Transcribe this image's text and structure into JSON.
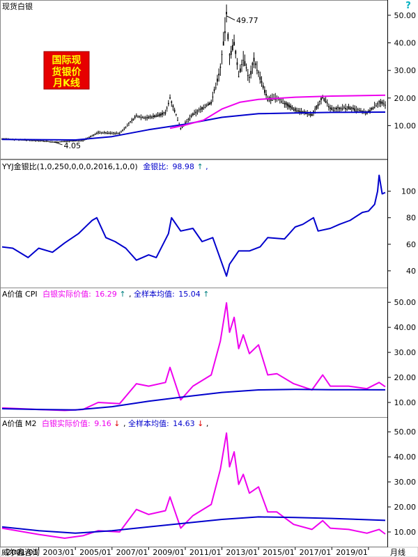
{
  "colors": {
    "black": "#000000",
    "blue": "#0000cc",
    "magenta": "#ee00ee",
    "red": "#dd0000",
    "badge_bg": "#e60000",
    "badge_text": "#ffff00",
    "teal": "#008080"
  },
  "badge": {
    "line1": "国际现",
    "line2": "货银价",
    "line3": "月K线"
  },
  "help_icon": "?",
  "axis_footer": {
    "left": "威尔鑫咨询",
    "right": "月线"
  },
  "chart_data": [
    {
      "type": "candlestick",
      "title": "现货白银",
      "x": [
        "2001/01",
        "2003/01",
        "2005/01",
        "2007/01",
        "2009/01",
        "2011/01",
        "2013/01",
        "2015/01",
        "2017/01",
        "2019/01"
      ],
      "xlim": [
        "1999/01",
        "2019/12"
      ],
      "ylim": [
        0,
        52
      ],
      "yticks": [
        "10.00",
        "20.00",
        "30.00",
        "40.00",
        "50.00"
      ],
      "annotations": {
        "high": "49.77",
        "low": "4.05"
      },
      "series": [
        {
          "color": "#000000",
          "points": [
            [
              "1999/01",
              5.2
            ],
            [
              "2001/06",
              4.4
            ],
            [
              "2001/11",
              4.05
            ],
            [
              "2003/06",
              4.6
            ],
            [
              "2004/04",
              7.5
            ],
            [
              "2005/06",
              7.2
            ],
            [
              "2006/05",
              13.5
            ],
            [
              "2006/12",
              12.8
            ],
            [
              "2007/12",
              14.5
            ],
            [
              "2008/03",
              20.2
            ],
            [
              "2008/10",
              9.0
            ],
            [
              "2009/06",
              14.0
            ],
            [
              "2010/06",
              18.5
            ],
            [
              "2010/12",
              30.5
            ],
            [
              "2011/04",
              49.77
            ],
            [
              "2011/06",
              35.0
            ],
            [
              "2011/09",
              40.0
            ],
            [
              "2011/12",
              28.5
            ],
            [
              "2012/03",
              34.5
            ],
            [
              "2012/07",
              27.0
            ],
            [
              "2012/10",
              34.0
            ],
            [
              "2013/04",
              24.0
            ],
            [
              "2013/07",
              19.5
            ],
            [
              "2014/01",
              20.0
            ],
            [
              "2014/12",
              16.0
            ],
            [
              "2015/12",
              13.8
            ],
            [
              "2016/07",
              20.5
            ],
            [
              "2016/12",
              16.0
            ],
            [
              "2017/12",
              16.5
            ],
            [
              "2018/12",
              14.5
            ],
            [
              "2019/08",
              18.5
            ],
            [
              "2019/12",
              17.5
            ]
          ]
        },
        {
          "color": "#0000cc",
          "points": [
            [
              "1999/01",
              5.0
            ],
            [
              "2003/01",
              4.8
            ],
            [
              "2005/01",
              6.0
            ],
            [
              "2007/01",
              8.5
            ],
            [
              "2009/01",
              10.5
            ],
            [
              "2011/01",
              13.0
            ],
            [
              "2013/01",
              14.3
            ],
            [
              "2015/01",
              14.6
            ],
            [
              "2017/01",
              14.8
            ],
            [
              "2019/12",
              14.9
            ]
          ]
        },
        {
          "color": "#ee00ee",
          "points": [
            [
              "2008/03",
              9.0
            ],
            [
              "2009/01",
              10.2
            ],
            [
              "2010/01",
              12.0
            ],
            [
              "2011/01",
              16.0
            ],
            [
              "2012/01",
              18.5
            ],
            [
              "2013/01",
              19.5
            ],
            [
              "2015/01",
              20.3
            ],
            [
              "2017/01",
              20.7
            ],
            [
              "2019/12",
              21.0
            ]
          ]
        }
      ]
    },
    {
      "type": "line",
      "title": "YYJ金银比(1,0,250,0,0,0,2016,1,0,0)",
      "legend_label": "金银比:",
      "legend_value": "98.98",
      "legend_arrow": "↑",
      "legend_tail": ",",
      "ylim": [
        30,
        115
      ],
      "yticks": [
        "40",
        "60",
        "80",
        "100"
      ],
      "series": [
        {
          "color": "#0000cc",
          "points": [
            [
              "1999/01",
              58
            ],
            [
              "1999/08",
              57
            ],
            [
              "2000/06",
              50
            ],
            [
              "2001/01",
              57
            ],
            [
              "2001/10",
              54
            ],
            [
              "2002/06",
              61
            ],
            [
              "2003/03",
              68
            ],
            [
              "2003/12",
              78
            ],
            [
              "2004/03",
              80
            ],
            [
              "2004/09",
              65
            ],
            [
              "2005/03",
              62
            ],
            [
              "2005/10",
              57
            ],
            [
              "2006/05",
              48
            ],
            [
              "2007/01",
              52
            ],
            [
              "2007/06",
              50
            ],
            [
              "2008/02",
              68
            ],
            [
              "2008/04",
              80
            ],
            [
              "2008/10",
              70
            ],
            [
              "2009/06",
              72
            ],
            [
              "2009/12",
              62
            ],
            [
              "2010/07",
              65
            ],
            [
              "2011/04",
              36
            ],
            [
              "2011/06",
              45
            ],
            [
              "2011/12",
              55
            ],
            [
              "2012/07",
              55
            ],
            [
              "2013/02",
              58
            ],
            [
              "2013/07",
              65
            ],
            [
              "2014/06",
              64
            ],
            [
              "2015/01",
              73
            ],
            [
              "2015/06",
              75
            ],
            [
              "2016/01",
              80
            ],
            [
              "2016/04",
              70
            ],
            [
              "2016/12",
              72
            ],
            [
              "2017/06",
              75
            ],
            [
              "2018/01",
              78
            ],
            [
              "2018/09",
              84
            ],
            [
              "2019/01",
              85
            ],
            [
              "2019/05",
              90
            ],
            [
              "2019/07",
              100
            ],
            [
              "2019/08",
              112
            ],
            [
              "2019/10",
              98
            ],
            [
              "2019/12",
              98.98
            ]
          ]
        }
      ]
    },
    {
      "type": "line",
      "title": "A价值 CPI",
      "legend": [
        {
          "label": "白银实际价值:",
          "value": "16.29",
          "arrow": "↑",
          "color": "#ee00ee"
        },
        {
          "label": "全样本均值:",
          "value": "15.04",
          "arrow": "↑",
          "color": "#0000cc"
        }
      ],
      "ylim": [
        5,
        52
      ],
      "yticks": [
        "10.00",
        "20.00",
        "30.00",
        "40.00",
        "50.00"
      ],
      "series": [
        {
          "name": "白银实际价值",
          "color": "#ee00ee",
          "points": [
            [
              "1999/01",
              7.8
            ],
            [
              "2001/01",
              7.2
            ],
            [
              "2002/06",
              6.8
            ],
            [
              "2003/06",
              7.2
            ],
            [
              "2004/04",
              10.0
            ],
            [
              "2005/06",
              9.5
            ],
            [
              "2006/05",
              17.5
            ],
            [
              "2007/01",
              16.5
            ],
            [
              "2007/12",
              18.0
            ],
            [
              "2008/03",
              24.0
            ],
            [
              "2008/10",
              11.0
            ],
            [
              "2009/06",
              16.5
            ],
            [
              "2010/06",
              21.0
            ],
            [
              "2010/12",
              34.5
            ],
            [
              "2011/04",
              49.77
            ],
            [
              "2011/06",
              38.0
            ],
            [
              "2011/09",
              44.0
            ],
            [
              "2011/12",
              31.5
            ],
            [
              "2012/03",
              37.0
            ],
            [
              "2012/07",
              29.5
            ],
            [
              "2013/01",
              33.0
            ],
            [
              "2013/07",
              21.0
            ],
            [
              "2014/01",
              21.5
            ],
            [
              "2014/12",
              17.5
            ],
            [
              "2015/12",
              15.0
            ],
            [
              "2016/07",
              21.0
            ],
            [
              "2016/12",
              16.5
            ],
            [
              "2017/12",
              16.5
            ],
            [
              "2018/12",
              15.5
            ],
            [
              "2019/08",
              18.0
            ],
            [
              "2019/12",
              16.29
            ]
          ]
        },
        {
          "name": "全样本均值",
          "color": "#0000cc",
          "points": [
            [
              "1999/01",
              7.5
            ],
            [
              "2001/01",
              7.2
            ],
            [
              "2003/01",
              7.0
            ],
            [
              "2005/01",
              8.3
            ],
            [
              "2007/01",
              10.5
            ],
            [
              "2009/01",
              12.3
            ],
            [
              "2011/01",
              14.0
            ],
            [
              "2013/01",
              15.0
            ],
            [
              "2015/01",
              15.2
            ],
            [
              "2017/01",
              15.1
            ],
            [
              "2019/12",
              15.04
            ]
          ]
        }
      ]
    },
    {
      "type": "line",
      "title": "A价值 M2",
      "legend": [
        {
          "label": "白银实际价值:",
          "value": "9.16",
          "arrow": "↓",
          "color": "#ee00ee"
        },
        {
          "label": "全样本均值:",
          "value": "14.63",
          "arrow": "↓",
          "color": "#0000cc"
        }
      ],
      "ylim": [
        5,
        52
      ],
      "yticks": [
        "10.00",
        "20.00",
        "30.00",
        "40.00",
        "50.00"
      ],
      "series": [
        {
          "name": "白银实际价值",
          "color": "#ee00ee",
          "points": [
            [
              "1999/01",
              11.5
            ],
            [
              "2001/01",
              9.0
            ],
            [
              "2002/06",
              7.5
            ],
            [
              "2003/06",
              8.5
            ],
            [
              "2004/04",
              10.5
            ],
            [
              "2005/06",
              10.0
            ],
            [
              "2006/05",
              19.0
            ],
            [
              "2007/01",
              17.0
            ],
            [
              "2007/12",
              18.5
            ],
            [
              "2008/03",
              24.0
            ],
            [
              "2008/10",
              11.5
            ],
            [
              "2009/06",
              16.5
            ],
            [
              "2010/06",
              21.0
            ],
            [
              "2010/12",
              35.0
            ],
            [
              "2011/04",
              49.5
            ],
            [
              "2011/06",
              36.0
            ],
            [
              "2011/09",
              42.0
            ],
            [
              "2011/12",
              29.0
            ],
            [
              "2012/03",
              33.0
            ],
            [
              "2012/07",
              25.5
            ],
            [
              "2013/01",
              28.0
            ],
            [
              "2013/07",
              18.0
            ],
            [
              "2014/01",
              18.0
            ],
            [
              "2014/12",
              13.0
            ],
            [
              "2015/12",
              11.0
            ],
            [
              "2016/07",
              14.5
            ],
            [
              "2016/12",
              11.5
            ],
            [
              "2017/12",
              11.0
            ],
            [
              "2018/12",
              9.5
            ],
            [
              "2019/08",
              11.0
            ],
            [
              "2019/12",
              9.16
            ]
          ]
        },
        {
          "name": "全样本均值",
          "color": "#0000cc",
          "points": [
            [
              "1999/01",
              12.0
            ],
            [
              "2001/01",
              10.5
            ],
            [
              "2003/01",
              9.5
            ],
            [
              "2005/01",
              10.5
            ],
            [
              "2007/01",
              12.0
            ],
            [
              "2009/01",
              13.5
            ],
            [
              "2011/01",
              15.0
            ],
            [
              "2013/01",
              16.0
            ],
            [
              "2015/01",
              15.8
            ],
            [
              "2017/01",
              15.4
            ],
            [
              "2019/12",
              14.63
            ]
          ]
        }
      ]
    }
  ]
}
